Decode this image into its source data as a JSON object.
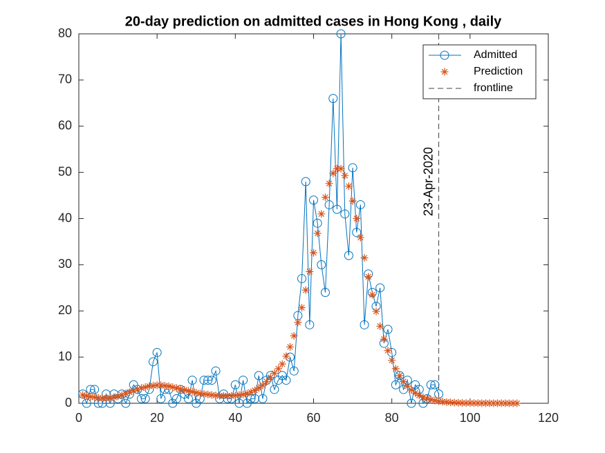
{
  "chart_data": {
    "type": "line",
    "title": "20-day prediction on admitted cases in Hong Kong , daily",
    "xlim": [
      0,
      120
    ],
    "xticks": [
      0,
      20,
      40,
      60,
      80,
      100,
      120
    ],
    "ylim": [
      0,
      80
    ],
    "yticks": [
      0,
      10,
      20,
      30,
      40,
      50,
      60,
      70,
      80
    ],
    "legend": "upper right",
    "series": [
      {
        "name": "Admitted",
        "color": "#0072BD",
        "linestyle": "solid",
        "marker": "o",
        "x": [
          1,
          2,
          3,
          4,
          5,
          6,
          7,
          8,
          9,
          10,
          11,
          12,
          13,
          14,
          15,
          16,
          17,
          18,
          19,
          20,
          21,
          22,
          23,
          24,
          25,
          26,
          27,
          28,
          29,
          30,
          31,
          32,
          33,
          34,
          35,
          36,
          37,
          38,
          39,
          40,
          41,
          42,
          43,
          44,
          45,
          46,
          47,
          48,
          49,
          50,
          51,
          52,
          53,
          54,
          55,
          56,
          57,
          58,
          59,
          60,
          61,
          62,
          63,
          64,
          65,
          66,
          67,
          68,
          69,
          70,
          71,
          72,
          73,
          74,
          75,
          76,
          77,
          78,
          79,
          80,
          81,
          82,
          83,
          84,
          85,
          86,
          87,
          88,
          89,
          90,
          91,
          92
        ],
        "values": [
          2,
          0,
          3,
          3,
          0,
          0,
          2,
          0,
          2,
          1,
          2,
          0,
          2,
          4,
          3,
          1,
          1,
          3,
          9,
          11,
          1,
          3,
          3,
          0,
          1,
          3,
          2,
          1,
          5,
          0,
          1,
          5,
          5,
          5,
          7,
          1,
          2,
          1,
          1,
          4,
          0,
          5,
          0,
          1,
          1,
          6,
          1,
          5,
          6,
          3,
          5,
          6,
          5,
          10,
          7,
          19,
          27,
          48,
          17,
          44,
          39,
          30,
          24,
          43,
          66,
          42,
          80,
          41,
          32,
          51,
          37,
          43,
          17,
          28,
          24,
          21,
          25,
          13,
          16,
          11,
          4,
          6,
          3,
          5,
          0,
          4,
          3,
          0,
          1,
          4,
          4,
          2
        ]
      },
      {
        "name": "Prediction",
        "color": "#D95319",
        "linestyle": "none",
        "marker": "*",
        "x": [
          1,
          2,
          3,
          4,
          5,
          6,
          7,
          8,
          9,
          10,
          11,
          12,
          13,
          14,
          15,
          16,
          17,
          18,
          19,
          20,
          21,
          22,
          23,
          24,
          25,
          26,
          27,
          28,
          29,
          30,
          31,
          32,
          33,
          34,
          35,
          36,
          37,
          38,
          39,
          40,
          41,
          42,
          43,
          44,
          45,
          46,
          47,
          48,
          49,
          50,
          51,
          52,
          53,
          54,
          55,
          56,
          57,
          58,
          59,
          60,
          61,
          62,
          63,
          64,
          65,
          66,
          67,
          68,
          69,
          70,
          71,
          72,
          73,
          74,
          75,
          76,
          77,
          78,
          79,
          80,
          81,
          82,
          83,
          84,
          85,
          86,
          87,
          88,
          89,
          90,
          91,
          92,
          93,
          94,
          95,
          96,
          97,
          98,
          99,
          100,
          101,
          102,
          103,
          104,
          105,
          106,
          107,
          108,
          109,
          110,
          111,
          112
        ],
        "values": [
          1.8,
          1.6,
          1.4,
          1.3,
          1.2,
          1.1,
          1.1,
          1.2,
          1.3,
          1.5,
          1.8,
          2.1,
          2.4,
          2.7,
          3.0,
          3.3,
          3.5,
          3.7,
          3.8,
          3.9,
          3.9,
          3.8,
          3.7,
          3.5,
          3.3,
          3.1,
          2.9,
          2.7,
          2.5,
          2.3,
          2.1,
          2.0,
          1.9,
          1.8,
          1.7,
          1.6,
          1.6,
          1.6,
          1.6,
          1.7,
          1.8,
          1.9,
          2.1,
          2.4,
          2.8,
          3.3,
          3.9,
          4.7,
          5.6,
          6.5,
          7.5,
          8.5,
          10.2,
          12.2,
          14.6,
          17.5,
          20.7,
          24.5,
          28.5,
          32.6,
          36.8,
          41,
          44.6,
          47.6,
          49.8,
          50.8,
          50.8,
          49.3,
          47,
          43.8,
          40,
          35.9,
          31.5,
          27.4,
          23.5,
          19.9,
          16.7,
          13.9,
          11.4,
          9.3,
          7.5,
          6,
          4.7,
          3.7,
          2.9,
          2.2,
          1.7,
          1.3,
          1,
          0.8,
          0.6,
          0.45,
          0.35,
          0.27,
          0.2,
          0.15,
          0.11,
          0.08,
          0.06,
          0.05,
          0.04,
          0.03,
          0.02,
          0.02,
          0.01,
          0.01,
          0.01,
          0.01,
          0,
          0,
          0,
          0
        ]
      }
    ],
    "frontline": {
      "name": "frontline",
      "x": 92,
      "label": "23-Apr-2020",
      "color": "#404040"
    }
  }
}
